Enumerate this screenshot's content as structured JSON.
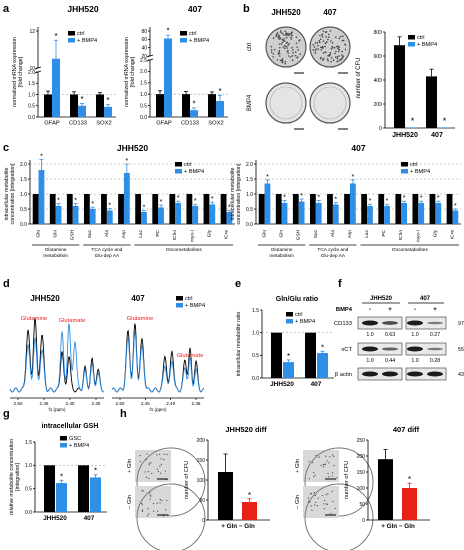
{
  "panels": {
    "a": "a",
    "b": "b",
    "c": "c",
    "d": "d",
    "e": "e",
    "f": "f",
    "g": "g",
    "h": "h"
  },
  "colors": {
    "ctrl": "#000000",
    "bmp4": "#2f8ee6",
    "minus_gln": "#e8201a",
    "grid": "#999999"
  },
  "legend": {
    "ctrl": "ctrl",
    "bmp4": "+ BMP4",
    "gsc": "GSC"
  },
  "panel_a": {
    "ylabel": "normalized mRNA expression [fold change]",
    "ylabel_l1": "normalized mRNA expression",
    "ylabel_l2": "[fold change]",
    "asterisk": "*",
    "charts": [
      {
        "title": "JHH520",
        "yticks": [
          "0.0",
          "0.5",
          "1.0",
          "1.5",
          "2.0"
        ],
        "break_labels": [
          "10",
          "12"
        ],
        "categories": [
          "GFAP",
          "CD133",
          "SOX2"
        ]
      },
      {
        "title": "407",
        "yticks": [
          "0.0",
          "0.5",
          "1.0",
          "1.5",
          "2.0",
          "2.5"
        ],
        "break_labels": [
          "20",
          "40",
          "60",
          "80"
        ],
        "categories": [
          "GFAP",
          "CD133",
          "SOX2"
        ]
      }
    ]
  },
  "panel_b": {
    "titles": [
      "JHH520",
      "407"
    ],
    "rows": [
      "ctrl",
      "BMP4"
    ],
    "ylabel": "number of CFU",
    "yticks": [
      "0",
      "200",
      "400",
      "600",
      "800"
    ],
    "categories": [
      "JHH520",
      "407"
    ]
  },
  "panel_c": {
    "ylabel_l1": "intracellular metabolite",
    "ylabel_l2": "concentration [integration]",
    "charts": [
      {
        "title": "JHH520",
        "yticks": [
          "0.0",
          "0.5",
          "1.0",
          "1.5",
          "2.0"
        ]
      },
      {
        "title": "407",
        "yticks": [
          "0.0",
          "0.5",
          "1.0",
          "1.5",
          "2.0"
        ]
      }
    ],
    "categories": [
      "Glu",
      "Gln",
      "GSH",
      "Suc",
      "Ala",
      "Asp",
      "Lac",
      "PC",
      "tCho",
      "myo-I",
      "Gly",
      "tCre"
    ],
    "groups": [
      "Glutamine metabolism",
      "TCA cycle and Glu-dep AA",
      "Oncometabolites"
    ],
    "groups_l1": [
      "Glutamine",
      "TCA cycle and",
      "Oncometabolites"
    ],
    "groups_l2": [
      "metabolism",
      "Glu-dep AA",
      ""
    ]
  },
  "panel_d": {
    "spectra": [
      {
        "title": "JHH520",
        "labels": [
          "Glutamine",
          "Glutamate"
        ],
        "xticks": [
          "2.50",
          "2.45",
          "2.40",
          "2.35"
        ]
      },
      {
        "title": "407",
        "labels": [
          "Glutamine",
          "Glutamate"
        ],
        "xticks": [
          "2.50",
          "2.45",
          "2.40",
          "2.35"
        ]
      }
    ],
    "xlabel": "f1 (ppm)"
  },
  "panel_e": {
    "title": "Gln/Glu ratio",
    "ylabel": "intracellular metabolite ratio",
    "yticks": [
      "0.0",
      "0.5",
      "1.0",
      "1.5"
    ],
    "categories": [
      "JHH520",
      "407"
    ]
  },
  "panel_f": {
    "headers": [
      "JHH520",
      "407"
    ],
    "bmp4_label": "BMP4",
    "signs": [
      "-",
      "+",
      "-",
      "+"
    ],
    "blots": [
      {
        "name": "CD133",
        "kda": "97 kDa",
        "values": [
          "1.0",
          "0.63",
          "1.0",
          "0.27"
        ]
      },
      {
        "name": "xCT",
        "kda": "55 kDa",
        "values": [
          "1.0",
          "0.44",
          "1.0",
          "0.28"
        ]
      },
      {
        "name": "β actin",
        "kda": "43 kDa",
        "values": []
      }
    ]
  },
  "panel_g": {
    "title": "intracellular GSH",
    "ylabel_l1": "relative metabolite concentration",
    "ylabel_l2": "[integration]",
    "yticks": [
      "0.0",
      "0.5",
      "1.0",
      "1.5"
    ],
    "categories": [
      "JHH520",
      "407"
    ]
  },
  "panel_h": {
    "charts": [
      {
        "title": "JHH520 diff",
        "yticks": [
          "0",
          "50",
          "100",
          "150",
          "200"
        ],
        "rows": [
          "+ Gln",
          "− Gln"
        ]
      },
      {
        "title": "407 diff",
        "yticks": [
          "0",
          "50",
          "100",
          "150",
          "200",
          "250"
        ],
        "rows": [
          "+ Gln",
          "− Gln"
        ]
      }
    ],
    "ylabel": "number of CFU",
    "xlabel": "+ Gln  − Gln"
  },
  "chart_data": [
    {
      "id": "a-JHH520",
      "type": "bar",
      "title": "JHH520",
      "ylabel": "normalized mRNA expression [fold change]",
      "categories": [
        "GFAP",
        "CD133",
        "SOX2"
      ],
      "series": [
        {
          "name": "ctrl",
          "values": [
            1.0,
            1.0,
            1.0
          ],
          "errors": [
            0.15,
            0.12,
            0.08
          ]
        },
        {
          "name": "+ BMP4",
          "values": [
            10.5,
            0.5,
            0.45
          ],
          "errors": [
            1.0,
            0.1,
            0.1
          ]
        }
      ],
      "significant": [
        false,
        true,
        true,
        true,
        false,
        true,
        false,
        true
      ],
      "ylim": [
        0,
        12
      ]
    },
    {
      "id": "a-407",
      "type": "bar",
      "title": "407",
      "ylabel": "normalized mRNA expression [fold change]",
      "categories": [
        "GFAP",
        "CD133",
        "SOX2"
      ],
      "series": [
        {
          "name": "ctrl",
          "values": [
            1.0,
            1.0,
            1.0
          ],
          "errors": [
            0.15,
            0.12,
            0.1
          ]
        },
        {
          "name": "+ BMP4",
          "values": [
            62,
            0.3,
            0.7
          ],
          "errors": [
            8,
            0.1,
            0.25
          ]
        }
      ],
      "ylim": [
        0,
        80
      ]
    },
    {
      "id": "b",
      "type": "bar",
      "ylabel": "number of CFU",
      "categories": [
        "JHH520",
        "407"
      ],
      "series": [
        {
          "name": "ctrl",
          "values": [
            690,
            430
          ],
          "errors": [
            70,
            60
          ]
        },
        {
          "name": "+ BMP4",
          "values": [
            5,
            5
          ],
          "errors": [
            0,
            0
          ]
        }
      ],
      "ylim": [
        0,
        800
      ]
    },
    {
      "id": "c-JHH520",
      "type": "bar",
      "title": "JHH520",
      "ylabel": "intracellular metabolite concentration [integration]",
      "categories": [
        "Glu",
        "Gln",
        "GSH",
        "Suc",
        "Ala",
        "Asp",
        "Lac",
        "PC",
        "tCho",
        "myo-I",
        "Gly",
        "tCre"
      ],
      "series": [
        {
          "name": "ctrl",
          "values": [
            1.0,
            1.0,
            1.0,
            1.0,
            1.0,
            1.0,
            1.0,
            1.0,
            1.0,
            1.0,
            1.0,
            1.0
          ]
        },
        {
          "name": "+ BMP4",
          "values": [
            1.8,
            0.6,
            0.6,
            0.5,
            0.45,
            1.7,
            0.4,
            0.55,
            0.7,
            0.6,
            0.65,
            0.4
          ],
          "errors": [
            0.35,
            0.08,
            0.08,
            0.06,
            0.06,
            0.3,
            0.05,
            0.08,
            0.06,
            0.06,
            0.08,
            0.05
          ]
        }
      ],
      "ylim": [
        0,
        2
      ]
    },
    {
      "id": "c-407",
      "type": "bar",
      "title": "407",
      "ylabel": "intracellular metabolite concentration [integration]",
      "categories": [
        "Glu",
        "Gln",
        "GSH",
        "Suc",
        "Ala",
        "Asp",
        "Lac",
        "PC",
        "tCho",
        "myo-I",
        "Gly",
        "tCre"
      ],
      "series": [
        {
          "name": "ctrl",
          "values": [
            1.0,
            1.0,
            1.0,
            1.0,
            1.0,
            1.0,
            1.0,
            1.0,
            1.0,
            1.0,
            1.0,
            1.0
          ]
        },
        {
          "name": "+ BMP4",
          "values": [
            1.35,
            0.7,
            0.75,
            0.7,
            0.65,
            1.35,
            0.6,
            0.6,
            0.7,
            0.7,
            0.7,
            0.45
          ],
          "errors": [
            0.12,
            0.08,
            0.08,
            0.08,
            0.06,
            0.12,
            0.06,
            0.06,
            0.06,
            0.06,
            0.06,
            0.05
          ]
        }
      ],
      "ylim": [
        0,
        2
      ]
    },
    {
      "id": "e",
      "type": "bar",
      "title": "Gln/Glu ratio",
      "ylabel": "intracellular metabolite ratio",
      "categories": [
        "JHH520",
        "407"
      ],
      "series": [
        {
          "name": "ctrl",
          "values": [
            1.0,
            1.0
          ]
        },
        {
          "name": "+ BMP4",
          "values": [
            0.35,
            0.55
          ],
          "errors": [
            0.05,
            0.04
          ]
        }
      ],
      "ylim": [
        0,
        1.5
      ]
    },
    {
      "id": "g",
      "type": "bar",
      "title": "intracellular GSH",
      "ylabel": "relative metabolite concentration [integration]",
      "categories": [
        "JHH520",
        "407"
      ],
      "series": [
        {
          "name": "GSC",
          "values": [
            1.0,
            1.0
          ]
        },
        {
          "name": "+ BMP4",
          "values": [
            0.62,
            0.74
          ],
          "errors": [
            0.06,
            0.06
          ]
        }
      ],
      "ylim": [
        0,
        1.5
      ]
    },
    {
      "id": "h-JHH520",
      "type": "bar",
      "title": "JHH520 diff",
      "ylabel": "number of CFU",
      "categories": [
        "+ Gln",
        "− Gln"
      ],
      "values": [
        120,
        45
      ],
      "errors": [
        45,
        8
      ],
      "ylim": [
        0,
        200
      ]
    },
    {
      "id": "h-407",
      "type": "bar",
      "title": "407 diff",
      "ylabel": "number of CFU",
      "categories": [
        "+ Gln",
        "− Gln"
      ],
      "values": [
        190,
        100
      ],
      "errors": [
        30,
        15
      ],
      "ylim": [
        0,
        250
      ]
    }
  ]
}
